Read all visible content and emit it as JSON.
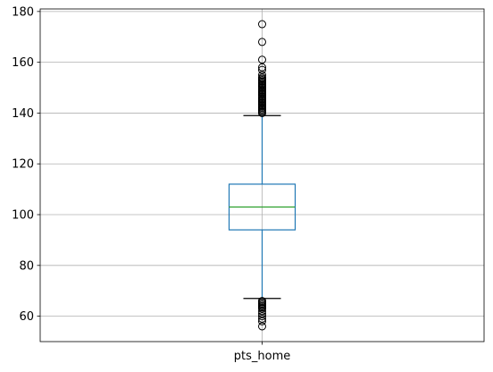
{
  "chart_data": {
    "type": "box",
    "categories": [
      "pts_home"
    ],
    "ylim": [
      50,
      181
    ],
    "yticks": [
      60,
      80,
      100,
      120,
      140,
      160,
      180
    ],
    "grid": true,
    "colors": {
      "box": "#1f77b4",
      "median": "#2ca02c",
      "whisker": "#1f77b4",
      "cap": "#000000",
      "grid": "#b0b0b0",
      "flier": "#000000"
    },
    "series": [
      {
        "q1": 94,
        "median": 103,
        "q3": 112,
        "whisker_low": 67,
        "whisker_high": 139,
        "outliers_high": [
          140,
          140.5,
          141,
          141.5,
          142,
          142.5,
          143,
          143.5,
          144,
          144.5,
          145,
          145.5,
          146,
          146.5,
          147,
          147.5,
          148,
          148.5,
          149,
          149.5,
          150,
          150.5,
          151,
          151.5,
          152,
          152.5,
          153,
          153.5,
          154,
          155,
          157,
          158,
          161,
          168,
          175
        ],
        "outliers_low": [
          66,
          65.5,
          65,
          64.5,
          64,
          63.5,
          63,
          62,
          61,
          60,
          59,
          58,
          56
        ]
      }
    ]
  }
}
